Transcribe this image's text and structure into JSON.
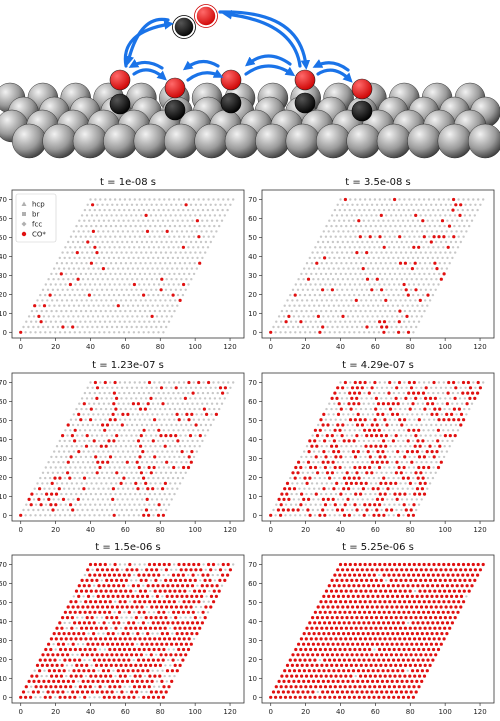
{
  "colors": {
    "site": "#c8c8c8",
    "co": "#e01010",
    "arrow": "#1a73e8",
    "frame": "#333333",
    "metal_dark": "#444444",
    "metal_light": "#e6e6e6"
  },
  "legend": {
    "placement": "top-left",
    "entries": [
      {
        "label": "hcp",
        "marker": "triangle"
      },
      {
        "label": "br",
        "marker": "square"
      },
      {
        "label": "fcc",
        "marker": "diamond"
      },
      {
        "label": "CO*",
        "marker": "circle"
      }
    ]
  },
  "chart_data": [
    {
      "type": "scatter",
      "title": "t = 1e-08 s",
      "coverage": 0.04,
      "xlim": [
        -5,
        128
      ],
      "ylim": [
        -3,
        75
      ],
      "xticks": [
        "0",
        "20",
        "40",
        "60",
        "80",
        "100",
        "120"
      ],
      "yticks": [
        "0",
        "10",
        "20",
        "30",
        "40",
        "50",
        "60",
        "70"
      ]
    },
    {
      "type": "scatter",
      "title": "t = 3.5e-08 s",
      "coverage": 0.09,
      "xlim": [
        -5,
        128
      ],
      "ylim": [
        -3,
        75
      ],
      "xticks": [
        "0",
        "20",
        "40",
        "60",
        "80",
        "100",
        "120"
      ],
      "yticks": [
        "0",
        "10",
        "20",
        "30",
        "40",
        "50",
        "60",
        "70"
      ]
    },
    {
      "type": "scatter",
      "title": "t = 1.23e-07 s",
      "coverage": 0.22,
      "xlim": [
        -5,
        128
      ],
      "ylim": [
        -3,
        75
      ],
      "xticks": [
        "0",
        "20",
        "40",
        "60",
        "80",
        "100",
        "120"
      ],
      "yticks": [
        "0",
        "10",
        "20",
        "30",
        "40",
        "50",
        "60",
        "70"
      ]
    },
    {
      "type": "scatter",
      "title": "t = 4.29e-07 s",
      "coverage": 0.45,
      "xlim": [
        -5,
        128
      ],
      "ylim": [
        -3,
        75
      ],
      "xticks": [
        "0",
        "20",
        "40",
        "60",
        "80",
        "100",
        "120"
      ],
      "yticks": [
        "0",
        "10",
        "20",
        "30",
        "40",
        "50",
        "60",
        "70"
      ]
    },
    {
      "type": "scatter",
      "title": "t = 1.5e-06 s",
      "coverage": 0.78,
      "xlim": [
        -5,
        128
      ],
      "ylim": [
        -3,
        75
      ],
      "xticks": [
        "0",
        "20",
        "40",
        "60",
        "80",
        "100",
        "120"
      ],
      "yticks": [
        "0",
        "10",
        "20",
        "30",
        "40",
        "50",
        "60",
        "70"
      ]
    },
    {
      "type": "scatter",
      "title": "t = 5.25e-06 s",
      "coverage": 0.99,
      "xlim": [
        -5,
        128
      ],
      "ylim": [
        -3,
        75
      ],
      "xticks": [
        "0",
        "20",
        "40",
        "60",
        "80",
        "100",
        "120"
      ],
      "yticks": [
        "0",
        "10",
        "20",
        "30",
        "40",
        "50",
        "60",
        "70"
      ]
    }
  ]
}
